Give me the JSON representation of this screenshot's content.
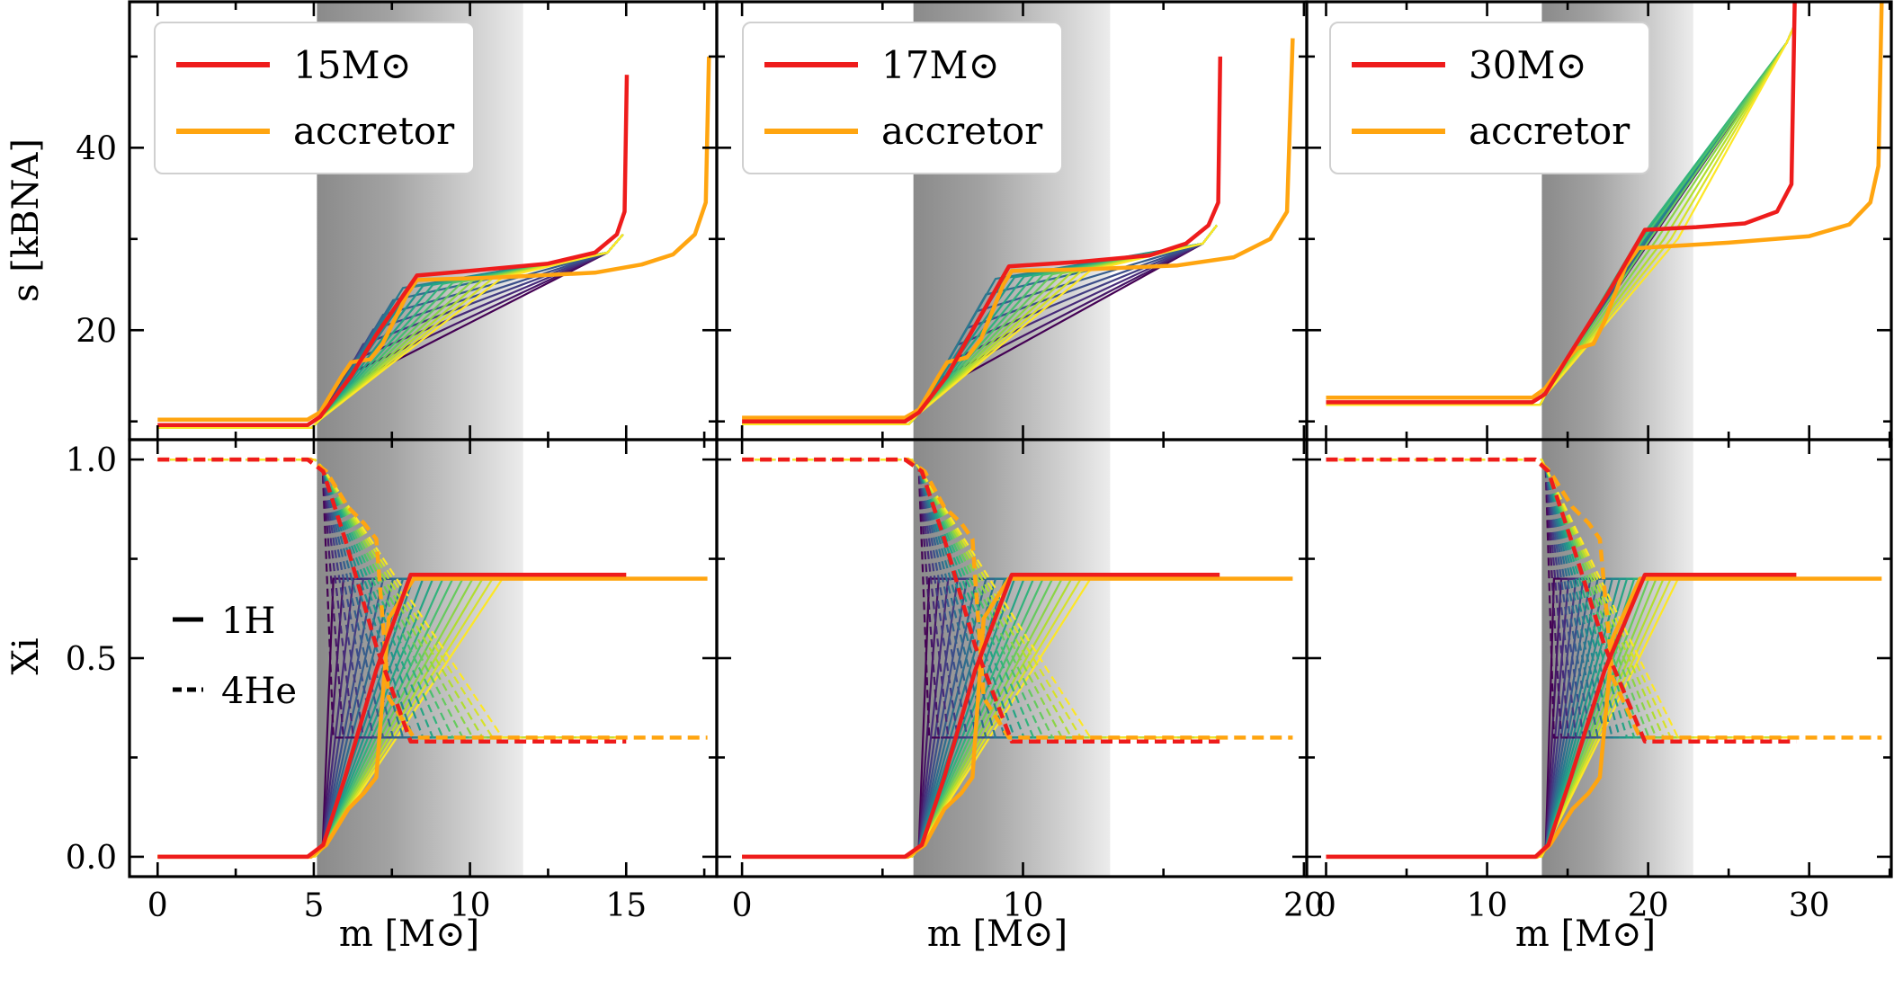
{
  "chart_data": {
    "type": "line",
    "layout": "2 rows x 3 columns of panels sharing rows",
    "xlabel": "m [M⊙]",
    "top_ylabel": "s [kBNA]",
    "bottom_ylabel": "Xi",
    "top_ylim": [
      8,
      56
    ],
    "top_yticks": [
      20,
      40
    ],
    "top_ytick_labels": [
      "20",
      "40"
    ],
    "bottom_ylim": [
      -0.05,
      1.05
    ],
    "bottom_yticks": [
      0.0,
      0.5,
      1.0
    ],
    "bottom_ytick_labels": [
      "0.0",
      "0.5",
      "1.0"
    ],
    "n_intermediate_models": 18,
    "colormap": "viridis",
    "colors": {
      "donor": "#ee1c1c",
      "accretor": "#ffa510"
    },
    "abundance_legend": [
      {
        "label": "1H",
        "style": "solid"
      },
      {
        "label": "4He",
        "style": "dashed"
      }
    ],
    "panels": [
      {
        "id": "15",
        "legend": [
          "15M⊙",
          "accretor"
        ],
        "xlim": [
          -0.9,
          17.9
        ],
        "xticks": [
          0,
          5,
          10,
          15
        ],
        "xtick_labels": [
          "0",
          "5",
          "10",
          "15"
        ],
        "shaded_region": [
          5.1,
          11.7
        ],
        "donor": {
          "entropy": [
            [
              0,
              9.6
            ],
            [
              4.8,
              9.6
            ],
            [
              5.2,
              10.5
            ],
            [
              6.2,
              15
            ],
            [
              7,
              19.5
            ],
            [
              8.3,
              26
            ],
            [
              10,
              26.5
            ],
            [
              12.5,
              27.3
            ],
            [
              14,
              28.5
            ],
            [
              14.7,
              30.5
            ],
            [
              14.95,
              33
            ],
            [
              15.02,
              48
            ]
          ],
          "h1": [
            [
              0,
              0
            ],
            [
              4.8,
              0
            ],
            [
              5.3,
              0.03
            ],
            [
              6,
              0.2
            ],
            [
              7,
              0.47
            ],
            [
              8.1,
              0.71
            ],
            [
              15,
              0.71
            ]
          ],
          "he4": [
            [
              0,
              1
            ],
            [
              4.8,
              1
            ],
            [
              5.3,
              0.97
            ],
            [
              6,
              0.8
            ],
            [
              7,
              0.53
            ],
            [
              8.1,
              0.29
            ],
            [
              15,
              0.29
            ]
          ]
        },
        "accretor": {
          "entropy": [
            [
              0,
              10.2
            ],
            [
              4.8,
              10.2
            ],
            [
              5.2,
              11
            ],
            [
              5.9,
              15
            ],
            [
              6.2,
              16.5
            ],
            [
              6.8,
              16.8
            ],
            [
              7.2,
              18.5
            ],
            [
              8,
              24
            ],
            [
              8.3,
              25.5
            ],
            [
              11,
              25.8
            ],
            [
              14,
              26.3
            ],
            [
              15.5,
              27.2
            ],
            [
              16.5,
              28.3
            ],
            [
              17.2,
              30.5
            ],
            [
              17.55,
              34
            ],
            [
              17.65,
              50
            ]
          ],
          "h1": [
            [
              0,
              0
            ],
            [
              4.9,
              0
            ],
            [
              5.4,
              0.03
            ],
            [
              6.1,
              0.12
            ],
            [
              6.6,
              0.16
            ],
            [
              7,
              0.2
            ],
            [
              7.4,
              0.6
            ],
            [
              8.2,
              0.7
            ],
            [
              17.6,
              0.7
            ]
          ],
          "he4": [
            [
              0,
              1
            ],
            [
              4.9,
              1
            ],
            [
              5.4,
              0.97
            ],
            [
              6.1,
              0.88
            ],
            [
              6.6,
              0.84
            ],
            [
              7,
              0.8
            ],
            [
              7.4,
              0.4
            ],
            [
              8.2,
              0.3
            ],
            [
              17.6,
              0.3
            ]
          ]
        }
      },
      {
        "id": "17",
        "legend": [
          "17M⊙",
          "accretor"
        ],
        "xlim": [
          -0.9,
          20.1
        ],
        "xticks": [
          0,
          10,
          20
        ],
        "xtick_labels": [
          "0",
          "10",
          "20"
        ],
        "shaded_region": [
          6.1,
          13.1
        ],
        "donor": {
          "entropy": [
            [
              0,
              10
            ],
            [
              5.8,
              10
            ],
            [
              6.3,
              11
            ],
            [
              7.3,
              15
            ],
            [
              8.2,
              20
            ],
            [
              9.5,
              27
            ],
            [
              12,
              27.5
            ],
            [
              14.5,
              28.2
            ],
            [
              15.8,
              29.5
            ],
            [
              16.6,
              31.5
            ],
            [
              16.95,
              34
            ],
            [
              17.02,
              50
            ]
          ],
          "h1": [
            [
              0,
              0
            ],
            [
              5.8,
              0
            ],
            [
              6.4,
              0.03
            ],
            [
              7.2,
              0.2
            ],
            [
              8.3,
              0.47
            ],
            [
              9.6,
              0.71
            ],
            [
              17,
              0.71
            ]
          ],
          "he4": [
            [
              0,
              1
            ],
            [
              5.8,
              1
            ],
            [
              6.4,
              0.97
            ],
            [
              7.2,
              0.8
            ],
            [
              8.3,
              0.53
            ],
            [
              9.6,
              0.29
            ],
            [
              17,
              0.29
            ]
          ]
        },
        "accretor": {
          "entropy": [
            [
              0,
              10.4
            ],
            [
              5.8,
              10.4
            ],
            [
              6.3,
              11.3
            ],
            [
              7,
              15
            ],
            [
              7.3,
              16.5
            ],
            [
              8,
              17
            ],
            [
              8.5,
              19
            ],
            [
              9.3,
              25
            ],
            [
              9.6,
              26.5
            ],
            [
              12.5,
              26.7
            ],
            [
              15.5,
              27.1
            ],
            [
              17.5,
              28
            ],
            [
              18.8,
              30
            ],
            [
              19.4,
              33
            ],
            [
              19.6,
              52
            ]
          ],
          "h1": [
            [
              0,
              0
            ],
            [
              5.9,
              0
            ],
            [
              6.5,
              0.03
            ],
            [
              7.2,
              0.12
            ],
            [
              7.8,
              0.16
            ],
            [
              8.2,
              0.2
            ],
            [
              8.6,
              0.6
            ],
            [
              9.5,
              0.7
            ],
            [
              19.6,
              0.7
            ]
          ],
          "he4": [
            [
              0,
              1
            ],
            [
              5.9,
              1
            ],
            [
              6.5,
              0.97
            ],
            [
              7.2,
              0.88
            ],
            [
              7.8,
              0.84
            ],
            [
              8.2,
              0.8
            ],
            [
              8.6,
              0.4
            ],
            [
              9.5,
              0.3
            ],
            [
              19.6,
              0.3
            ]
          ]
        }
      },
      {
        "id": "30",
        "legend": [
          "30M⊙",
          "accretor"
        ],
        "xlim": [
          -1.2,
          35.1
        ],
        "xticks": [
          0,
          10,
          20,
          30
        ],
        "xtick_labels": [
          "0",
          "10",
          "20",
          "30"
        ],
        "shaded_region": [
          13.4,
          22.8
        ],
        "donor": {
          "entropy": [
            [
              0,
              12.1
            ],
            [
              12.8,
              12.1
            ],
            [
              13.6,
              13
            ],
            [
              15,
              17
            ],
            [
              17.5,
              24
            ],
            [
              19.8,
              31
            ],
            [
              23,
              31.3
            ],
            [
              26,
              31.7
            ],
            [
              28,
              33
            ],
            [
              28.9,
              36
            ],
            [
              29.1,
              56
            ]
          ],
          "h1": [
            [
              0,
              0
            ],
            [
              13,
              0
            ],
            [
              13.8,
              0.03
            ],
            [
              15.2,
              0.2
            ],
            [
              17.3,
              0.47
            ],
            [
              19.8,
              0.71
            ],
            [
              29.2,
              0.71
            ]
          ],
          "he4": [
            [
              0,
              1
            ],
            [
              13,
              1
            ],
            [
              13.8,
              0.97
            ],
            [
              15.2,
              0.8
            ],
            [
              17.3,
              0.53
            ],
            [
              19.8,
              0.29
            ],
            [
              29.2,
              0.29
            ]
          ]
        },
        "accretor": {
          "entropy": [
            [
              0,
              12.6
            ],
            [
              12.8,
              12.6
            ],
            [
              13.6,
              13.6
            ],
            [
              14.8,
              16.5
            ],
            [
              15.6,
              18
            ],
            [
              16.6,
              18.5
            ],
            [
              17.3,
              21
            ],
            [
              18.6,
              27
            ],
            [
              19.4,
              29
            ],
            [
              25,
              29.6
            ],
            [
              30,
              30.3
            ],
            [
              32.5,
              31.6
            ],
            [
              33.8,
              34
            ],
            [
              34.3,
              38
            ],
            [
              34.5,
              56
            ]
          ],
          "h1": [
            [
              0,
              0
            ],
            [
              13.1,
              0
            ],
            [
              13.9,
              0.03
            ],
            [
              15.3,
              0.12
            ],
            [
              16.3,
              0.16
            ],
            [
              17,
              0.2
            ],
            [
              17.8,
              0.55
            ],
            [
              19.5,
              0.7
            ],
            [
              34.5,
              0.7
            ]
          ],
          "he4": [
            [
              0,
              1
            ],
            [
              13.1,
              1
            ],
            [
              13.9,
              0.97
            ],
            [
              15.3,
              0.88
            ],
            [
              16.3,
              0.84
            ],
            [
              17,
              0.8
            ],
            [
              17.8,
              0.45
            ],
            [
              19.5,
              0.3
            ],
            [
              34.5,
              0.3
            ]
          ]
        }
      }
    ]
  }
}
